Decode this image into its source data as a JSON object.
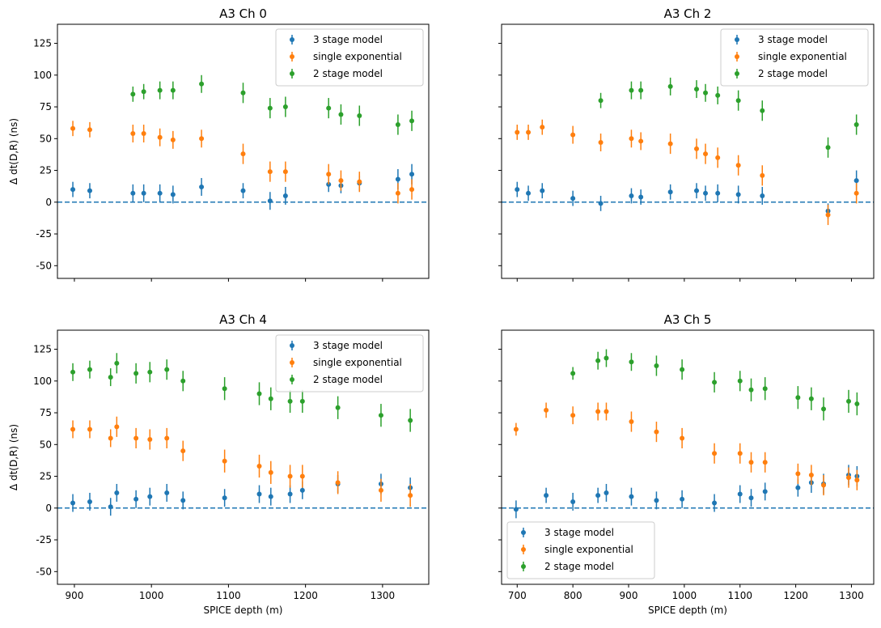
{
  "figure": {
    "shared_y_label": "Δ dt(D,R) (ns)"
  },
  "chart_data": [
    {
      "type": "scatter",
      "title": "A3 Ch 0",
      "xlabel": "",
      "ylabel": "Δ dt(D,R) (ns)",
      "xlim": [
        878,
        1360
      ],
      "ylim": [
        -60,
        140
      ],
      "xticks": [
        900,
        1000,
        1100,
        1200,
        1300
      ],
      "show_xtick_labels": false,
      "yticks": [
        -50,
        -25,
        0,
        25,
        50,
        75,
        100,
        125
      ],
      "show_ytick_labels": true,
      "zero_line": 0,
      "legend": {
        "position": "top-right",
        "entries": [
          "3 stage model",
          "single exponential",
          "2 stage model"
        ]
      },
      "x": [
        898,
        920,
        976,
        990,
        1011,
        1028,
        1065,
        1119,
        1154,
        1174,
        1230,
        1246,
        1270,
        1320,
        1338
      ],
      "series": [
        {
          "name": "3 stage model",
          "color": "#1f77b4",
          "values": [
            10,
            9,
            7,
            7,
            7,
            6,
            12,
            9,
            1,
            5,
            14,
            13,
            15,
            18,
            22
          ],
          "errors": [
            6,
            6,
            7,
            7,
            7,
            7,
            7,
            6,
            7,
            7,
            6,
            6,
            6,
            8,
            8
          ]
        },
        {
          "name": "single exponential",
          "color": "#ff7f0e",
          "values": [
            58,
            57,
            54,
            54,
            51,
            49,
            50,
            38,
            24,
            24,
            22,
            17,
            16,
            7,
            10
          ],
          "errors": [
            6,
            6,
            7,
            7,
            7,
            7,
            7,
            8,
            8,
            8,
            8,
            8,
            8,
            8,
            8
          ]
        },
        {
          "name": "2 stage model",
          "color": "#2ca02c",
          "values": [
            null,
            null,
            85,
            87,
            88,
            88,
            93,
            86,
            74,
            75,
            74,
            69,
            68,
            61,
            64
          ],
          "errors": [
            0,
            0,
            6,
            6,
            7,
            7,
            7,
            8,
            8,
            8,
            8,
            8,
            8,
            8,
            8
          ]
        }
      ]
    },
    {
      "type": "scatter",
      "title": "A3 Ch 2",
      "xlabel": "",
      "ylabel": "",
      "xlim": [
        672,
        1340
      ],
      "ylim": [
        -60,
        140
      ],
      "xticks": [
        700,
        800,
        900,
        1000,
        1100,
        1200,
        1300
      ],
      "show_xtick_labels": false,
      "yticks": [
        -50,
        -25,
        0,
        25,
        50,
        75,
        100,
        125
      ],
      "show_ytick_labels": false,
      "zero_line": 0,
      "legend": {
        "position": "top-right",
        "entries": [
          "3 stage model",
          "single exponential",
          "2 stage model"
        ]
      },
      "x": [
        700,
        720,
        745,
        800,
        850,
        905,
        922,
        975,
        1022,
        1038,
        1060,
        1097,
        1140,
        1258,
        1309
      ],
      "series": [
        {
          "name": "3 stage model",
          "color": "#1f77b4",
          "values": [
            10,
            7,
            9,
            3,
            -1,
            5,
            4,
            8,
            9,
            7,
            7,
            6,
            5,
            -7,
            17
          ],
          "errors": [
            6,
            6,
            6,
            6,
            6,
            6,
            6,
            6,
            6,
            6,
            7,
            7,
            7,
            6,
            8
          ]
        },
        {
          "name": "single exponential",
          "color": "#ff7f0e",
          "values": [
            55,
            55,
            59,
            53,
            47,
            50,
            48,
            46,
            42,
            38,
            35,
            29,
            21,
            -10,
            7
          ],
          "errors": [
            6,
            6,
            6,
            7,
            7,
            7,
            7,
            8,
            8,
            8,
            8,
            8,
            8,
            8,
            8
          ]
        },
        {
          "name": "2 stage model",
          "color": "#2ca02c",
          "values": [
            null,
            null,
            null,
            null,
            80,
            88,
            88,
            91,
            89,
            86,
            84,
            80,
            72,
            43,
            61
          ],
          "errors": [
            0,
            0,
            0,
            0,
            6,
            7,
            7,
            7,
            7,
            7,
            7,
            8,
            8,
            8,
            8
          ]
        }
      ]
    },
    {
      "type": "scatter",
      "title": "A3 Ch 4",
      "xlabel": "SPICE depth (m)",
      "ylabel": "Δ dt(D,R) (ns)",
      "xlim": [
        878,
        1360
      ],
      "ylim": [
        -60,
        140
      ],
      "xticks": [
        900,
        1000,
        1100,
        1200,
        1300
      ],
      "show_xtick_labels": true,
      "yticks": [
        -50,
        -25,
        0,
        25,
        50,
        75,
        100,
        125
      ],
      "show_ytick_labels": true,
      "zero_line": 0,
      "legend": {
        "position": "top-right",
        "entries": [
          "3 stage model",
          "single exponential",
          "2 stage model"
        ]
      },
      "x": [
        898,
        920,
        947,
        955,
        980,
        998,
        1020,
        1041,
        1095,
        1140,
        1155,
        1180,
        1196,
        1242,
        1298,
        1336
      ],
      "series": [
        {
          "name": "3 stage model",
          "color": "#1f77b4",
          "values": [
            4,
            5,
            1,
            12,
            7,
            9,
            12,
            6,
            8,
            11,
            9,
            11,
            14,
            19,
            19,
            16
          ],
          "errors": [
            7,
            7,
            7,
            7,
            7,
            7,
            7,
            7,
            7,
            7,
            7,
            7,
            7,
            7,
            8,
            8
          ]
        },
        {
          "name": "single exponential",
          "color": "#ff7f0e",
          "values": [
            62,
            62,
            55,
            64,
            55,
            54,
            55,
            45,
            37,
            33,
            28,
            25,
            25,
            20,
            14,
            10
          ],
          "errors": [
            7,
            7,
            7,
            8,
            8,
            8,
            8,
            8,
            9,
            9,
            9,
            9,
            9,
            9,
            9,
            9
          ]
        },
        {
          "name": "2 stage model",
          "color": "#2ca02c",
          "values": [
            107,
            109,
            103,
            114,
            106,
            107,
            109,
            100,
            94,
            90,
            86,
            84,
            84,
            79,
            73,
            69
          ],
          "errors": [
            7,
            7,
            7,
            8,
            8,
            8,
            8,
            8,
            9,
            9,
            9,
            9,
            9,
            9,
            9,
            9
          ]
        }
      ]
    },
    {
      "type": "scatter",
      "title": "A3 Ch 5",
      "xlabel": "SPICE depth (m)",
      "ylabel": "",
      "xlim": [
        672,
        1340
      ],
      "ylim": [
        -60,
        140
      ],
      "xticks": [
        700,
        800,
        900,
        1000,
        1100,
        1200,
        1300
      ],
      "show_xtick_labels": true,
      "yticks": [
        -50,
        -25,
        0,
        25,
        50,
        75,
        100,
        125
      ],
      "show_ytick_labels": false,
      "zero_line": 0,
      "legend": {
        "position": "bottom-left",
        "entries": [
          "3 stage model",
          "single exponential",
          "2 stage model"
        ]
      },
      "x": [
        698,
        752,
        800,
        845,
        860,
        905,
        950,
        996,
        1054,
        1100,
        1120,
        1145,
        1204,
        1228,
        1250,
        1295,
        1310
      ],
      "series": [
        {
          "name": "3 stage model",
          "color": "#1f77b4",
          "values": [
            -1,
            10,
            5,
            10,
            12,
            9,
            6,
            7,
            4,
            11,
            8,
            13,
            16,
            20,
            19,
            26,
            25
          ],
          "errors": [
            7,
            6,
            7,
            6,
            7,
            7,
            7,
            7,
            7,
            7,
            7,
            7,
            7,
            8,
            8,
            8,
            8
          ]
        },
        {
          "name": "single exponential",
          "color": "#ff7f0e",
          "values": [
            62,
            77,
            73,
            76,
            76,
            68,
            60,
            55,
            43,
            43,
            36,
            36,
            27,
            26,
            18,
            24,
            22
          ],
          "errors": [
            5,
            6,
            7,
            7,
            7,
            8,
            8,
            8,
            8,
            8,
            8,
            8,
            8,
            8,
            8,
            8,
            8
          ]
        },
        {
          "name": "2 stage model",
          "color": "#2ca02c",
          "values": [
            null,
            null,
            106,
            116,
            118,
            115,
            112,
            109,
            99,
            100,
            93,
            94,
            87,
            86,
            78,
            84,
            82
          ],
          "errors": [
            0,
            0,
            5,
            7,
            7,
            7,
            8,
            8,
            8,
            8,
            9,
            9,
            9,
            9,
            9,
            9,
            9
          ]
        }
      ]
    }
  ]
}
